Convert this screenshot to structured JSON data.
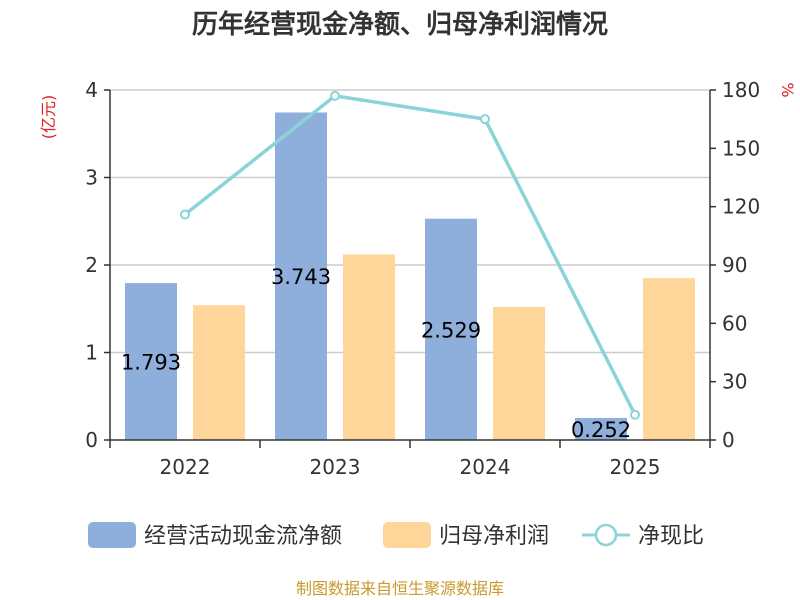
{
  "chart_data": {
    "type": "bar+line",
    "title": "历年经营现金净额、归母净利润情况",
    "categories": [
      "2022",
      "2023",
      "2024",
      "2025"
    ],
    "y_left": {
      "unit_label": "(亿元)",
      "ylim": [
        0,
        4
      ],
      "ticks": [
        "0",
        "1",
        "2",
        "3",
        "4"
      ]
    },
    "y_right": {
      "unit_label": "%",
      "ylim": [
        0,
        180
      ],
      "ticks": [
        "0",
        "30",
        "60",
        "90",
        "120",
        "150",
        "180"
      ]
    },
    "series": [
      {
        "name": "经营活动现金流净额",
        "type": "bar",
        "axis": "left",
        "color": "#8eaedb",
        "values": [
          1.793,
          3.743,
          2.529,
          0.252
        ],
        "labels": [
          "1.793",
          "3.743",
          "2.529",
          "0.252"
        ]
      },
      {
        "name": "归母净利润",
        "type": "bar",
        "axis": "left",
        "color": "#ffd699",
        "values": [
          1.54,
          2.12,
          1.52,
          1.85
        ]
      },
      {
        "name": "净现比",
        "type": "line",
        "axis": "right",
        "color": "#8ad4d8",
        "values": [
          116,
          177,
          165,
          13
        ]
      }
    ],
    "grid": true,
    "legend": "bottom",
    "source": "制图数据来自恒生聚源数据库",
    "unit_color": "#e02020",
    "source_color": "#c79a2b"
  }
}
